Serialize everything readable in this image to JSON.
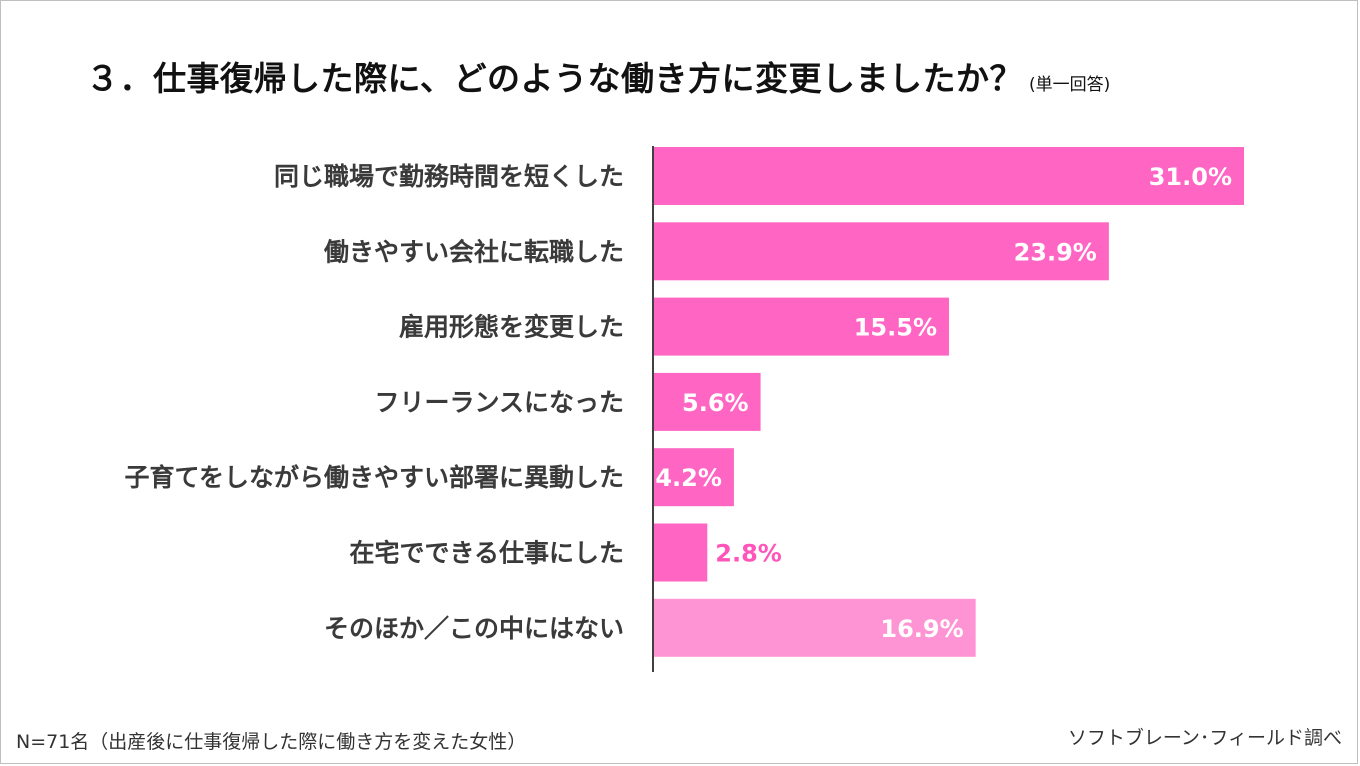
{
  "title": {
    "main": "３．仕事復帰した際に、どのような働き方に変更しましたか？",
    "sub": "(単一回答)"
  },
  "colors": {
    "bar": "#ff66c4",
    "bar_other": "#ff94d4",
    "label_inside": "#ffffff",
    "label_outside": "#ff55bb",
    "axis": "#404040",
    "category_text": "#3a3a3a"
  },
  "chart_data": {
    "type": "bar",
    "orientation": "horizontal",
    "categories": [
      "同じ職場で勤務時間を短くした",
      "働きやすい会社に転職した",
      "雇用形態を変更した",
      "フリーランスになった",
      "子育てをしながら働きやすい部署に異動した",
      "在宅でできる仕事にした",
      "そのほか／この中にはない"
    ],
    "values": [
      31.0,
      23.9,
      15.5,
      5.6,
      4.2,
      2.8,
      16.9
    ],
    "data_labels": [
      "31.0%",
      "23.9%",
      "15.5%",
      "5.6%",
      "4.2%",
      "2.8%",
      "16.9%"
    ],
    "unit": "%",
    "xlim": [
      0,
      31.0
    ],
    "grid": false,
    "legend": false
  },
  "footer": {
    "sample_note": "N=71名（出産後に仕事復帰した際に働き方を変えた女性）",
    "source": "ソフトブレーン･フィールド調べ"
  }
}
